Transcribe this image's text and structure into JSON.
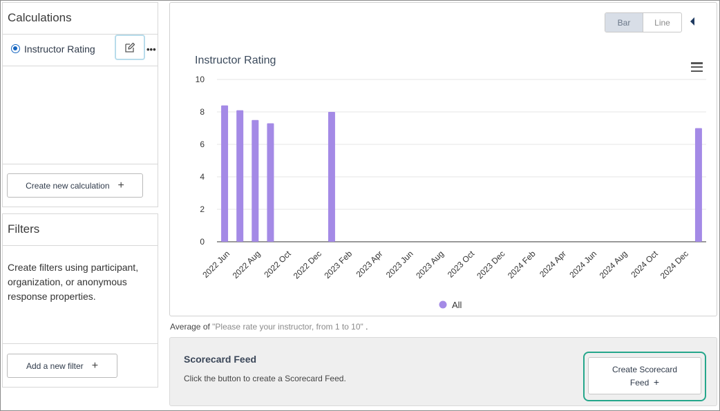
{
  "calculations": {
    "title": "Calculations",
    "items": [
      {
        "label": "Instructor Rating",
        "selected": true
      }
    ],
    "more_label": "•••",
    "create_label": "Create new calculation",
    "create_icon": "+"
  },
  "filters": {
    "title": "Filters",
    "description": "Create filters using participant, organization, or anonymous response properties.",
    "add_label": "Add a new filter",
    "add_icon": "+"
  },
  "chart_toggle": {
    "options": [
      "Bar",
      "Line"
    ],
    "active": "Bar"
  },
  "chart_data": {
    "type": "bar",
    "title": "Instructor Rating",
    "xlabel": "",
    "ylabel": "",
    "ylim": [
      0,
      10
    ],
    "yticks": [
      0,
      2,
      4,
      6,
      8,
      10
    ],
    "x_tick_labels": [
      "2022 Jun",
      "2022 Aug",
      "2022 Oct",
      "2022 Dec",
      "2023 Feb",
      "2023 Apr",
      "2023 Jun",
      "2023 Aug",
      "2023 Oct",
      "2023 Dec",
      "2024 Feb",
      "2024 Apr",
      "2024 Jun",
      "2024 Aug",
      "2024 Oct",
      "2024 Dec"
    ],
    "categories": [
      "2022 Jun",
      "2022 Jul",
      "2022 Aug",
      "2022 Sep",
      "2022 Oct",
      "2022 Nov",
      "2022 Dec",
      "2023 Jan",
      "2023 Feb",
      "2023 Mar",
      "2023 Apr",
      "2023 May",
      "2023 Jun",
      "2023 Jul",
      "2023 Aug",
      "2023 Sep",
      "2023 Oct",
      "2023 Nov",
      "2023 Dec",
      "2024 Jan",
      "2024 Feb",
      "2024 Mar",
      "2024 Apr",
      "2024 May",
      "2024 Jun",
      "2024 Jul",
      "2024 Aug",
      "2024 Sep",
      "2024 Oct",
      "2024 Nov",
      "2024 Dec",
      "2025 Jan"
    ],
    "series": [
      {
        "name": "All",
        "color": "#a48ae6",
        "values": [
          8.4,
          8.1,
          7.5,
          7.3,
          null,
          null,
          null,
          8.0,
          null,
          null,
          null,
          null,
          null,
          null,
          null,
          null,
          null,
          null,
          null,
          null,
          null,
          null,
          null,
          null,
          null,
          null,
          null,
          null,
          null,
          null,
          null,
          7.0
        ]
      }
    ],
    "grid": true,
    "legend_position": "bottom"
  },
  "average_text": {
    "prefix": "Average of ",
    "question": "\"Please rate your instructor, from 1 to 10\"",
    "suffix": " ."
  },
  "scorecard": {
    "title": "Scorecard Feed",
    "description": "Click the button to create a Scorecard Feed.",
    "button_line1": "Create Scorecard",
    "button_line2": "Feed",
    "button_icon": "+"
  },
  "icons": {
    "edit": "edit-icon",
    "menu": "hamburger-menu-icon",
    "collapse": "collapse-left-icon"
  }
}
